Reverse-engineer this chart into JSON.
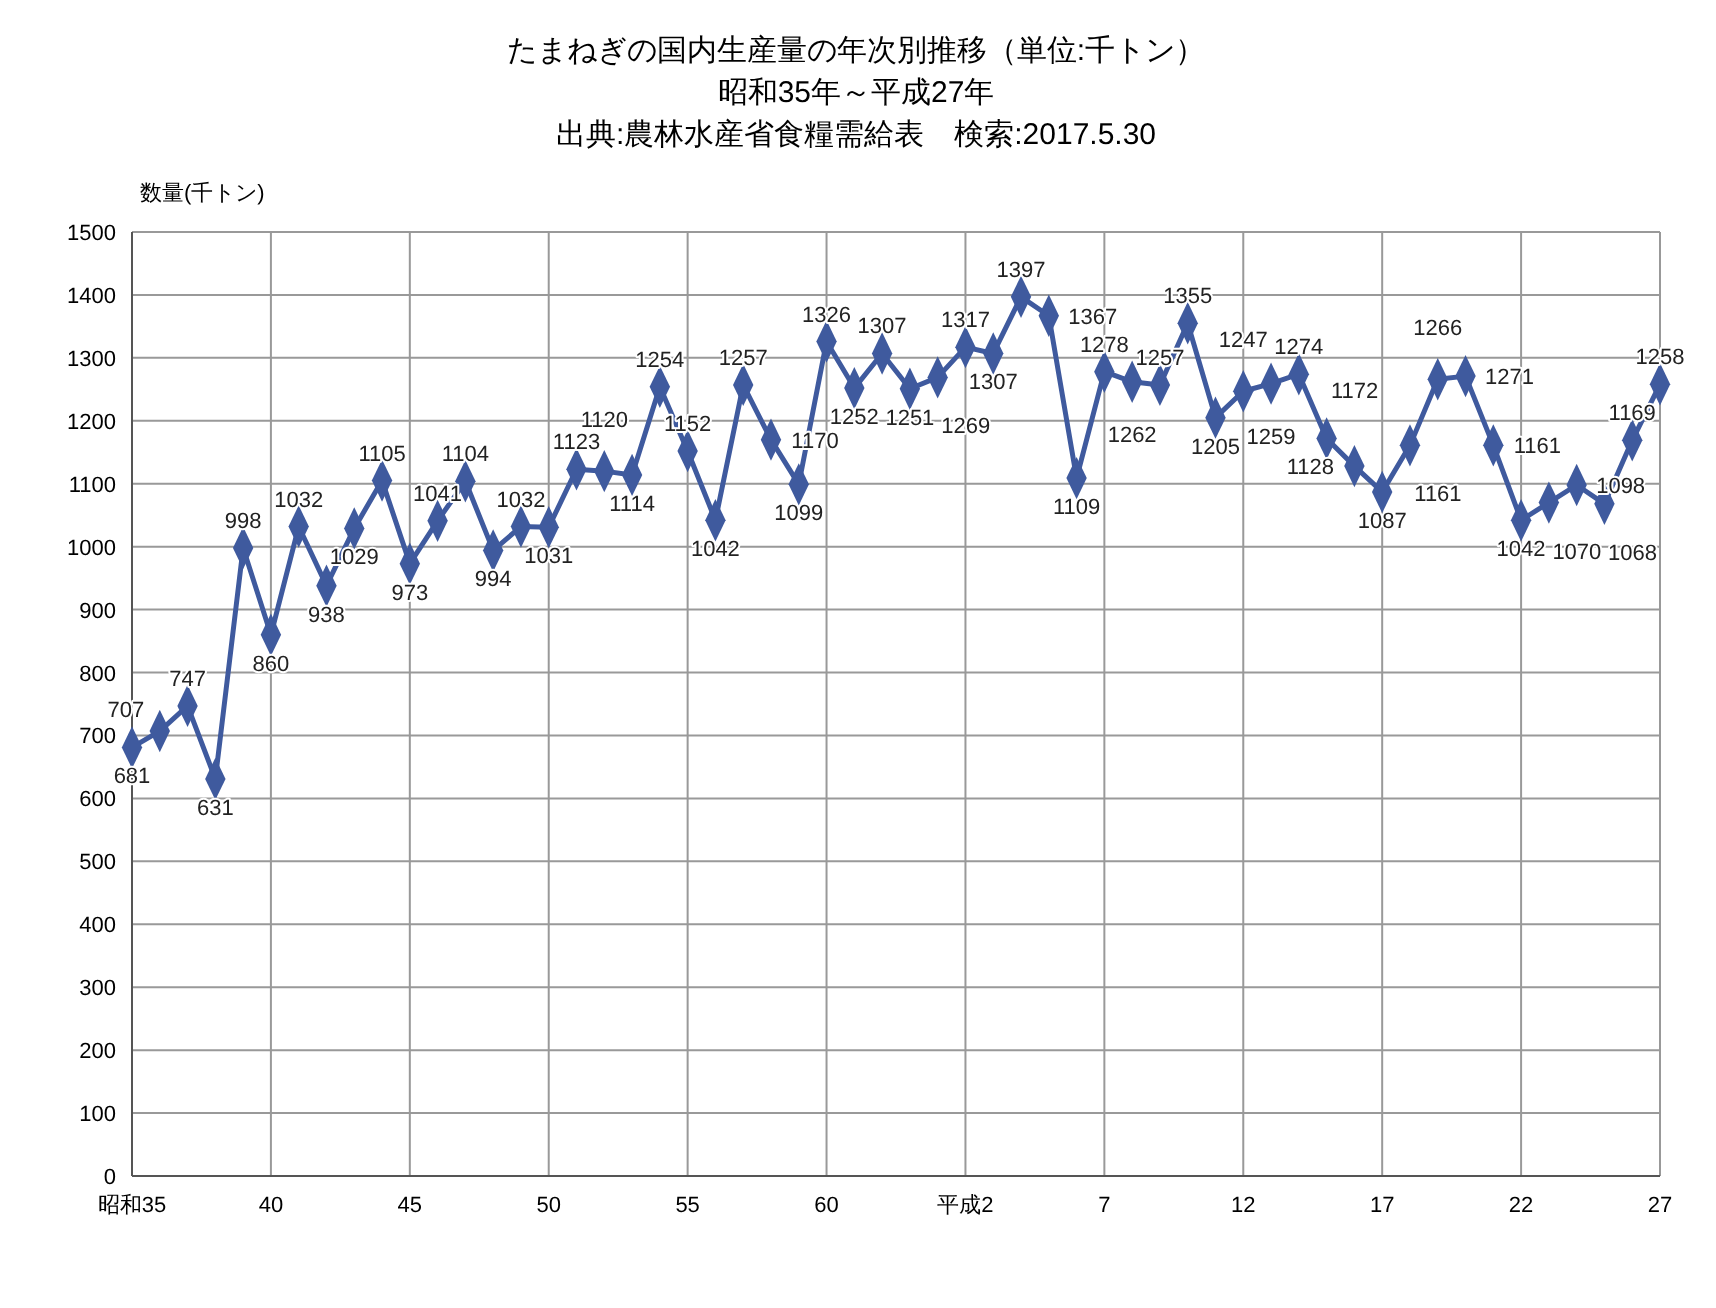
{
  "chart_data": {
    "type": "line",
    "title": "たまねぎの国内生産量の年次別推移（単位:千トン）",
    "subtitle": "昭和35年～平成27年",
    "annotations": [
      "出典:農林水産省食糧需給表　検索:2017.5.30"
    ],
    "ylabel": "数量(千トン)",
    "categories": [
      "昭和35",
      null,
      null,
      null,
      null,
      "40",
      null,
      null,
      null,
      null,
      "45",
      null,
      null,
      null,
      null,
      "50",
      null,
      null,
      null,
      null,
      "55",
      null,
      null,
      null,
      null,
      "60",
      null,
      null,
      null,
      null,
      "平成2",
      null,
      null,
      null,
      null,
      "7",
      null,
      null,
      null,
      null,
      "12",
      null,
      null,
      null,
      null,
      "17",
      null,
      null,
      null,
      null,
      "22",
      null,
      null,
      null,
      null,
      "27"
    ],
    "series": [
      {
        "color": "#3f5a9e",
        "values": [
          681,
          707,
          747,
          631,
          998,
          860,
          1032,
          938,
          1029,
          1105,
          973,
          1041,
          1104,
          994,
          1032,
          1031,
          1123,
          1120,
          1114,
          1254,
          1152,
          1042,
          1257,
          1170,
          1099,
          1326,
          1252,
          1307,
          1251,
          1269,
          1317,
          1307,
          1397,
          1367,
          1109,
          1278,
          1262,
          1257,
          1355,
          1205,
          1247,
          1259,
          1274,
          1172,
          1128,
          1087,
          1161,
          1266,
          1271,
          1161,
          1042,
          1070,
          1098,
          1068,
          1169,
          1258
        ]
      }
    ],
    "ylim": [
      0,
      1500
    ],
    "yticks": [
      0,
      100,
      200,
      300,
      400,
      500,
      600,
      700,
      800,
      900,
      1000,
      1100,
      1200,
      1300,
      1400,
      1500
    ],
    "grid": true,
    "marker": "diamond",
    "line_style": "solid",
    "data_labels": true
  }
}
